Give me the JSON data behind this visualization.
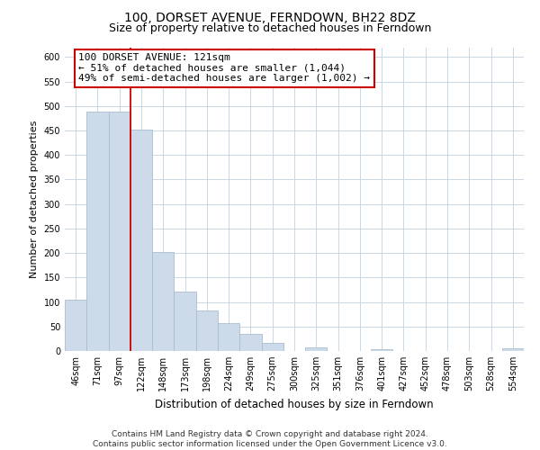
{
  "title": "100, DORSET AVENUE, FERNDOWN, BH22 8DZ",
  "subtitle": "Size of property relative to detached houses in Ferndown",
  "xlabel": "Distribution of detached houses by size in Ferndown",
  "ylabel": "Number of detached properties",
  "bar_labels": [
    "46sqm",
    "71sqm",
    "97sqm",
    "122sqm",
    "148sqm",
    "173sqm",
    "198sqm",
    "224sqm",
    "249sqm",
    "275sqm",
    "300sqm",
    "325sqm",
    "351sqm",
    "376sqm",
    "401sqm",
    "427sqm",
    "452sqm",
    "478sqm",
    "503sqm",
    "528sqm",
    "554sqm"
  ],
  "bar_heights": [
    105,
    488,
    488,
    452,
    202,
    122,
    83,
    57,
    35,
    16,
    0,
    8,
    0,
    0,
    3,
    0,
    0,
    0,
    0,
    0,
    5
  ],
  "bar_color": "#ccdaea",
  "bar_edge_color": "#aabdd0",
  "vline_x_index": 2.5,
  "vline_color": "#cc0000",
  "annotation_line1": "100 DORSET AVENUE: 121sqm",
  "annotation_line2": "← 51% of detached houses are smaller (1,044)",
  "annotation_line3": "49% of semi-detached houses are larger (1,002) →",
  "annotation_box_color": "#ffffff",
  "annotation_box_edge": "#cc0000",
  "ylim": [
    0,
    620
  ],
  "yticks": [
    0,
    50,
    100,
    150,
    200,
    250,
    300,
    350,
    400,
    450,
    500,
    550,
    600
  ],
  "footer_line1": "Contains HM Land Registry data © Crown copyright and database right 2024.",
  "footer_line2": "Contains public sector information licensed under the Open Government Licence v3.0.",
  "bg_color": "#ffffff",
  "grid_color": "#c8d8e8",
  "title_fontsize": 10,
  "subtitle_fontsize": 9,
  "ylabel_fontsize": 8,
  "xlabel_fontsize": 8.5,
  "tick_fontsize": 7,
  "annotation_fontsize": 8,
  "footer_fontsize": 6.5
}
